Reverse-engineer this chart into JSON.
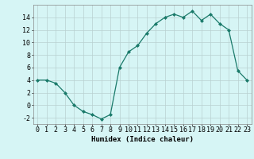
{
  "x": [
    0,
    1,
    2,
    3,
    4,
    5,
    6,
    7,
    8,
    9,
    10,
    11,
    12,
    13,
    14,
    15,
    16,
    17,
    18,
    19,
    20,
    21,
    22,
    23
  ],
  "y": [
    4,
    4,
    3.5,
    2,
    0,
    -1,
    -1.5,
    -2.2,
    -1.5,
    6,
    8.5,
    9.5,
    11.5,
    13,
    14,
    14.5,
    14,
    15,
    13.5,
    14.5,
    13,
    12,
    5.5,
    4
  ],
  "title": "",
  "xlabel": "Humidex (Indice chaleur)",
  "ylabel": "",
  "xlim": [
    -0.5,
    23.5
  ],
  "ylim": [
    -3,
    16
  ],
  "yticks": [
    -2,
    0,
    2,
    4,
    6,
    8,
    10,
    12,
    14
  ],
  "xticks": [
    0,
    1,
    2,
    3,
    4,
    5,
    6,
    7,
    8,
    9,
    10,
    11,
    12,
    13,
    14,
    15,
    16,
    17,
    18,
    19,
    20,
    21,
    22,
    23
  ],
  "line_color": "#1a7a6a",
  "marker": "D",
  "marker_size": 2.0,
  "bg_color": "#d6f5f5",
  "grid_color": "#b8d0d0",
  "label_fontsize": 6.5,
  "tick_fontsize": 6.0
}
